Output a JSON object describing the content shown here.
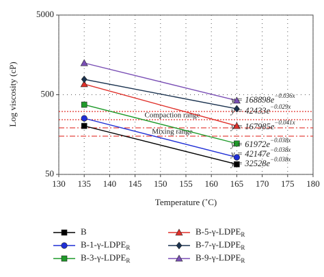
{
  "chart_data": {
    "type": "line",
    "y_label": "Log viscosity (cP)",
    "x_label": "Temperature (˚C)",
    "xlim": [
      130,
      180
    ],
    "xticks": [
      130,
      135,
      140,
      145,
      150,
      155,
      160,
      165,
      170,
      175,
      180
    ],
    "ylim": [
      50,
      5000
    ],
    "yticks": [
      50,
      500,
      5000
    ],
    "log_y": true,
    "grid": true,
    "x": [
      135,
      165
    ],
    "bands": [
      {
        "label": "Compaction range",
        "lines": [
          243,
          308
        ],
        "color": "#e0302a",
        "dash": "2,2"
      },
      {
        "label": "Mixing range",
        "lines": [
          151,
          192
        ],
        "color": "#e0302a",
        "dash": "8,3,2,3"
      }
    ],
    "series": [
      {
        "name": "B",
        "name_sub": null,
        "color": "#000000",
        "marker": "square",
        "values": [
          203,
          67
        ],
        "equation": "y = 32528e",
        "equation_exp": "−0.038x"
      },
      {
        "name": "B-1-γ-LDPE",
        "name_sub": "R",
        "color": "#1f2fd6",
        "marker": "circle",
        "values": [
          253,
          82
        ],
        "equation": "y = 42147e",
        "equation_exp": "−0.038x"
      },
      {
        "name": "B-3-γ-LDPE",
        "name_sub": "R",
        "color": "#1f9a2a",
        "marker": "square",
        "values": [
          375,
          122
        ],
        "equation": "y = 61972e",
        "equation_exp": "−0.038x"
      },
      {
        "name": "B-5-γ-LDPE",
        "name_sub": "R",
        "color": "#e0302a",
        "marker": "triangle",
        "values": [
          680,
          203
        ],
        "equation": "y = 167985e",
        "equation_exp": "−0.041x"
      },
      {
        "name": "B-7-γ-LDPE",
        "name_sub": "R",
        "color": "#1b3350",
        "marker": "diamond",
        "values": [
          780,
          333
        ],
        "equation": "y = 42433e",
        "equation_exp": "−0.029x"
      },
      {
        "name": "B-9-γ-LDPE",
        "name_sub": "R",
        "color": "#7a4fb5",
        "marker": "triangle",
        "values": [
          1250,
          423
        ],
        "equation": "y = 168898e",
        "equation_exp": "−0.036x"
      }
    ]
  }
}
